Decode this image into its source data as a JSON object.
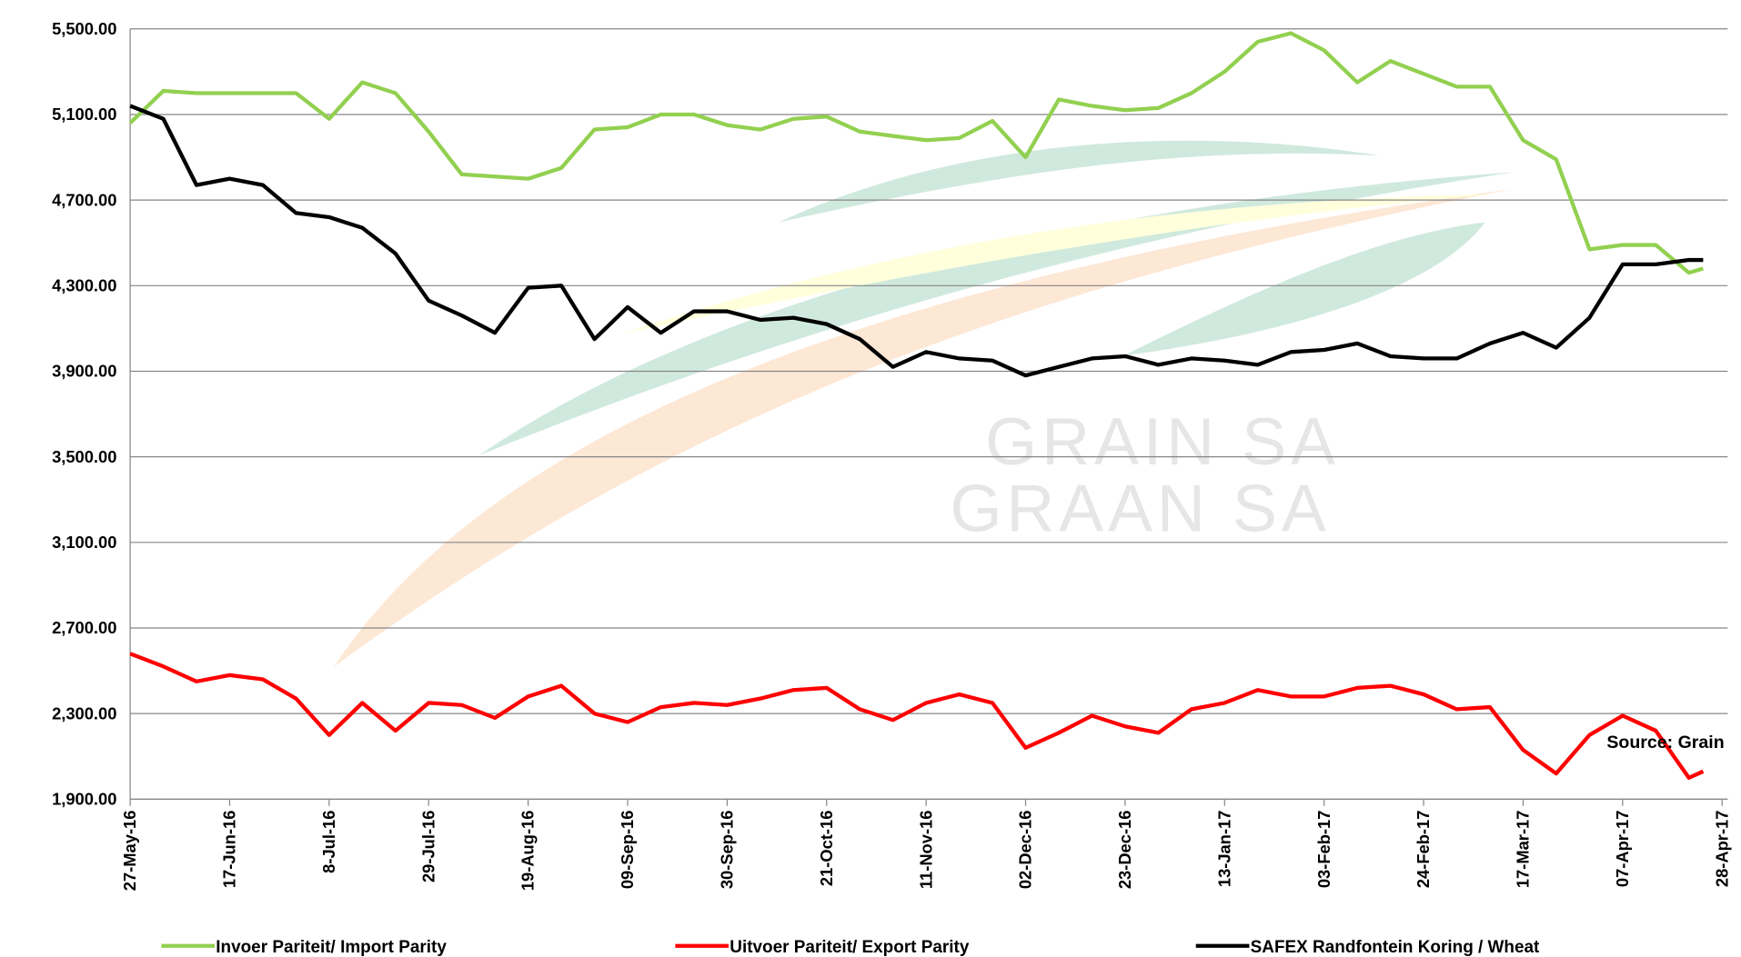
{
  "chart_data": {
    "type": "line",
    "watermark": [
      "GRAIN SA",
      "GRAAN SA"
    ],
    "annotation": "Source: Grain",
    "x": [
      "27-May-16",
      "03-Jun-16",
      "10-Jun-16",
      "17-Jun-16",
      "24-Jun-16",
      "01-Jul-16",
      "08-Jul-16",
      "15-Jul-16",
      "22-Jul-16",
      "29-Jul-16",
      "05-Aug-16",
      "12-Aug-16",
      "19-Aug-16",
      "26-Aug-16",
      "02-Sep-16",
      "09-Sep-16",
      "16-Sep-16",
      "23-Sep-16",
      "30-Sep-16",
      "07-Oct-16",
      "14-Oct-16",
      "21-Oct-16",
      "28-Oct-16",
      "04-Nov-16",
      "11-Nov-16",
      "18-Nov-16",
      "25-Nov-16",
      "02-Dec-16",
      "09-Dec-16",
      "16-Dec-16",
      "23-Dec-16",
      "30-Dec-16",
      "06-Jan-17",
      "13-Jan-17",
      "20-Jan-17",
      "27-Jan-17",
      "03-Feb-17",
      "10-Feb-17",
      "17-Feb-17",
      "24-Feb-17",
      "03-Mar-17",
      "10-Mar-17",
      "17-Mar-17",
      "24-Mar-17",
      "31-Mar-17",
      "07-Apr-17",
      "14-Apr-17",
      "21-Apr-17",
      "24-Apr-17"
    ],
    "series": [
      {
        "name": "Invoer Pariteit/ Import Parity",
        "color": "#92d050",
        "values": [
          5060,
          5210,
          5200,
          5200,
          5200,
          5200,
          5080,
          5250,
          5200,
          5020,
          4820,
          4810,
          4800,
          4850,
          5030,
          5040,
          5100,
          5100,
          5050,
          5030,
          5080,
          5090,
          5020,
          5000,
          4980,
          4990,
          5070,
          4900,
          5170,
          5140,
          5120,
          5130,
          5200,
          5300,
          5440,
          5480,
          5400,
          5250,
          5350,
          5290,
          5230,
          5230,
          4980,
          4890,
          4470,
          4490,
          4490,
          4360,
          4380
        ]
      },
      {
        "name": "Uitvoer Pariteit/ Export Parity",
        "color": "#ff0000",
        "values": [
          2580,
          2520,
          2450,
          2480,
          2460,
          2370,
          2200,
          2350,
          2220,
          2350,
          2340,
          2280,
          2380,
          2430,
          2300,
          2260,
          2330,
          2350,
          2340,
          2370,
          2410,
          2420,
          2320,
          2270,
          2350,
          2390,
          2350,
          2140,
          2210,
          2290,
          2240,
          2210,
          2320,
          2350,
          2410,
          2380,
          2380,
          2420,
          2430,
          2390,
          2320,
          2330,
          2130,
          2020,
          2200,
          2290,
          2220,
          2000,
          2030
        ]
      },
      {
        "name": "SAFEX  Randfontein Koring / Wheat",
        "color": "#000000",
        "values": [
          5140,
          5080,
          4770,
          4800,
          4770,
          4640,
          4620,
          4570,
          4450,
          4230,
          4160,
          4080,
          4290,
          4300,
          4050,
          4200,
          4080,
          4180,
          4180,
          4140,
          4150,
          4120,
          4050,
          3920,
          3990,
          3960,
          3950,
          3880,
          3920,
          3960,
          3970,
          3930,
          3960,
          3950,
          3930,
          3990,
          4000,
          4030,
          3970,
          3960,
          3960,
          4030,
          4080,
          4010,
          4150,
          4400,
          4400,
          4420,
          4420
        ]
      }
    ],
    "xlim": [
      "27-May-16",
      "28-Apr-17"
    ],
    "xticks": [
      "27-May-16",
      "17-Jun-16",
      "8-Jul-16",
      "29-Jul-16",
      "19-Aug-16",
      "09-Sep-16",
      "30-Sep-16",
      "21-Oct-16",
      "11-Nov-16",
      "02-Dec-16",
      "23-Dec-16",
      "13-Jan-17",
      "03-Feb-17",
      "24-Feb-17",
      "17-Mar-17",
      "07-Apr-17",
      "28-Apr-17"
    ],
    "ylim": [
      1900,
      5500
    ],
    "yticks": [
      {
        "value": 1900,
        "label": "1,900.00"
      },
      {
        "value": 2300,
        "label": "2,300.00"
      },
      {
        "value": 2700,
        "label": "2,700.00"
      },
      {
        "value": 3100,
        "label": "3,100.00"
      },
      {
        "value": 3500,
        "label": "3,500.00"
      },
      {
        "value": 3900,
        "label": "3,900.00"
      },
      {
        "value": 4300,
        "label": "4,300.00"
      },
      {
        "value": 4700,
        "label": "4,700.00"
      },
      {
        "value": 5100,
        "label": "5,100.00"
      },
      {
        "value": 5500,
        "label": "5,500.00"
      }
    ],
    "grid": true,
    "legend": "bottom"
  }
}
